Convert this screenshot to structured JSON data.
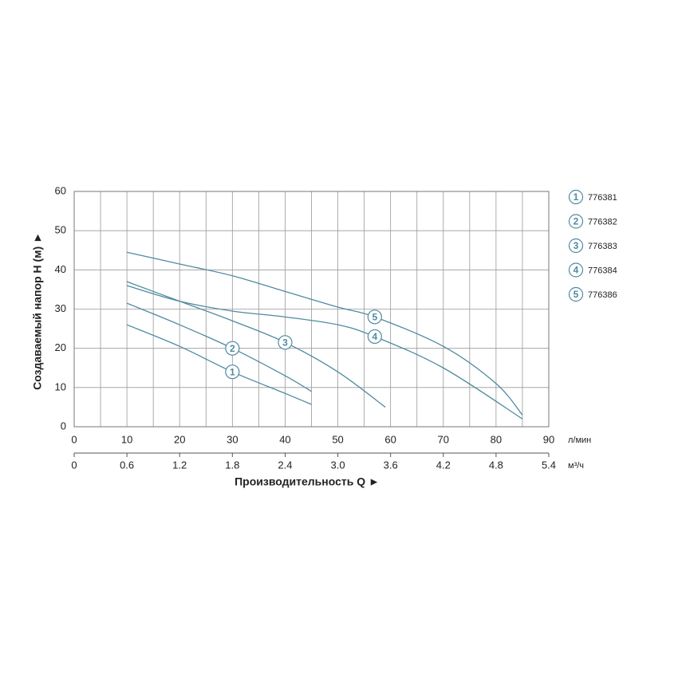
{
  "chart_data": {
    "type": "line",
    "ylabel": "Создаваемый напор H (м) ►",
    "xlabel": "Производительность Q ►",
    "xunit": "л/мин",
    "x2unit": "м³/ч",
    "xlim": [
      0,
      90
    ],
    "xticks": [
      0,
      10,
      20,
      30,
      40,
      50,
      60,
      70,
      80,
      90
    ],
    "xminorticks": [
      5,
      15,
      25,
      35,
      45,
      55,
      65,
      75,
      85
    ],
    "x2lim": [
      0,
      5.4
    ],
    "x2ticks": [
      0,
      0.6,
      1.2,
      1.8,
      2.4,
      {
        "value": 3,
        "label": "3.0"
      },
      3.6,
      4.2,
      4.8,
      5.4
    ],
    "ylim": [
      0,
      60
    ],
    "yticks": [
      0,
      10,
      20,
      30,
      40,
      50,
      60
    ],
    "grid": true,
    "series": [
      {
        "name": "776381",
        "label": "1",
        "color": "#4f8aa0",
        "x": [
          10,
          20,
          30,
          40,
          45
        ],
        "values": [
          26,
          20.5,
          14,
          8.5,
          5.7
        ]
      },
      {
        "name": "776382",
        "label": "2",
        "color": "#4f8aa0",
        "x": [
          10,
          20,
          30,
          40,
          45
        ],
        "values": [
          31.5,
          26,
          20,
          13,
          9
        ]
      },
      {
        "name": "776383",
        "label": "3",
        "color": "#4f8aa0",
        "x": [
          10,
          20,
          30,
          40,
          50,
          59
        ],
        "values": [
          37,
          32,
          27,
          21.5,
          14,
          5
        ]
      },
      {
        "name": "776384",
        "label": "4",
        "color": "#4f8aa0",
        "x": [
          10,
          20,
          30,
          40,
          50,
          57,
          70,
          85
        ],
        "values": [
          36,
          32,
          29.5,
          28,
          26,
          23,
          15,
          2
        ]
      },
      {
        "name": "776386",
        "label": "5",
        "color": "#4f8aa0",
        "x": [
          10,
          20,
          30,
          40,
          50,
          57,
          70,
          80,
          85
        ],
        "values": [
          44.5,
          41.5,
          38.5,
          34.5,
          30.5,
          28,
          20.5,
          11,
          3
        ]
      }
    ]
  }
}
